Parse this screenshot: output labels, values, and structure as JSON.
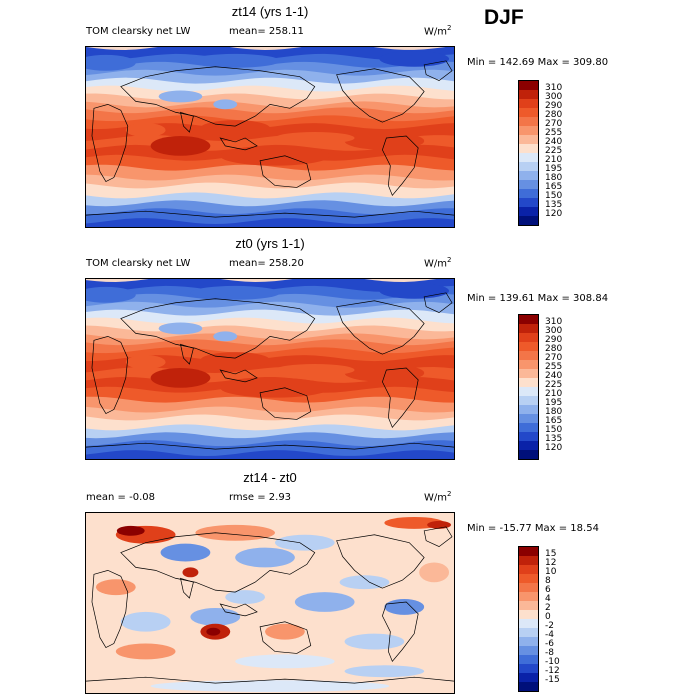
{
  "season": "DJF",
  "panels": [
    {
      "title": "zt14 (yrs 1-1)",
      "left_label": "TOM clearsky net LW",
      "mid_label": "mean= 258.11",
      "units_base": "W/m",
      "units_exp": "2",
      "minmax": "Min = 142.69 Max = 309.80",
      "field_type": "abs",
      "levels": [
        "310",
        "300",
        "290",
        "280",
        "270",
        "255",
        "240",
        "225",
        "210",
        "195",
        "180",
        "165",
        "150",
        "135",
        "120"
      ],
      "colors": [
        "#8b0000",
        "#c0220a",
        "#e0401a",
        "#ee5a2a",
        "#f37548",
        "#f8956c",
        "#fbb898",
        "#fde0cd",
        "#dce8f8",
        "#b8d0f3",
        "#8fb1ec",
        "#6690e2",
        "#3f6dd8",
        "#2348c9",
        "#0a22a8",
        "#00107a"
      ]
    },
    {
      "title": "zt0 (yrs 1-1)",
      "left_label": "TOM clearsky net LW",
      "mid_label": "mean= 258.20",
      "units_base": "W/m",
      "units_exp": "2",
      "minmax": "Min = 139.61 Max = 308.84",
      "field_type": "abs",
      "levels": [
        "310",
        "300",
        "290",
        "280",
        "270",
        "255",
        "240",
        "225",
        "210",
        "195",
        "180",
        "165",
        "150",
        "135",
        "120"
      ],
      "colors": [
        "#8b0000",
        "#c0220a",
        "#e0401a",
        "#ee5a2a",
        "#f37548",
        "#f8956c",
        "#fbb898",
        "#fde0cd",
        "#dce8f8",
        "#b8d0f3",
        "#8fb1ec",
        "#6690e2",
        "#3f6dd8",
        "#2348c9",
        "#0a22a8",
        "#00107a"
      ]
    },
    {
      "title": "zt14 - zt0",
      "left_label": "mean =   -0.08",
      "mid_label": "rmse =    2.93",
      "units_base": "W/m",
      "units_exp": "2",
      "minmax": "Min = -15.77 Max =  18.54",
      "field_type": "diff",
      "levels": [
        "15",
        "12",
        "10",
        "8",
        "6",
        "4",
        "2",
        "0",
        "-2",
        "-4",
        "-6",
        "-8",
        "-10",
        "-12",
        "-15"
      ],
      "colors": [
        "#8b0000",
        "#c0220a",
        "#e0401a",
        "#ee5a2a",
        "#f37548",
        "#f8956c",
        "#fbb898",
        "#fde0cd",
        "#dce8f8",
        "#b8d0f3",
        "#8fb1ec",
        "#6690e2",
        "#3f6dd8",
        "#2348c9",
        "#0a22a8",
        "#00107a"
      ]
    }
  ]
}
